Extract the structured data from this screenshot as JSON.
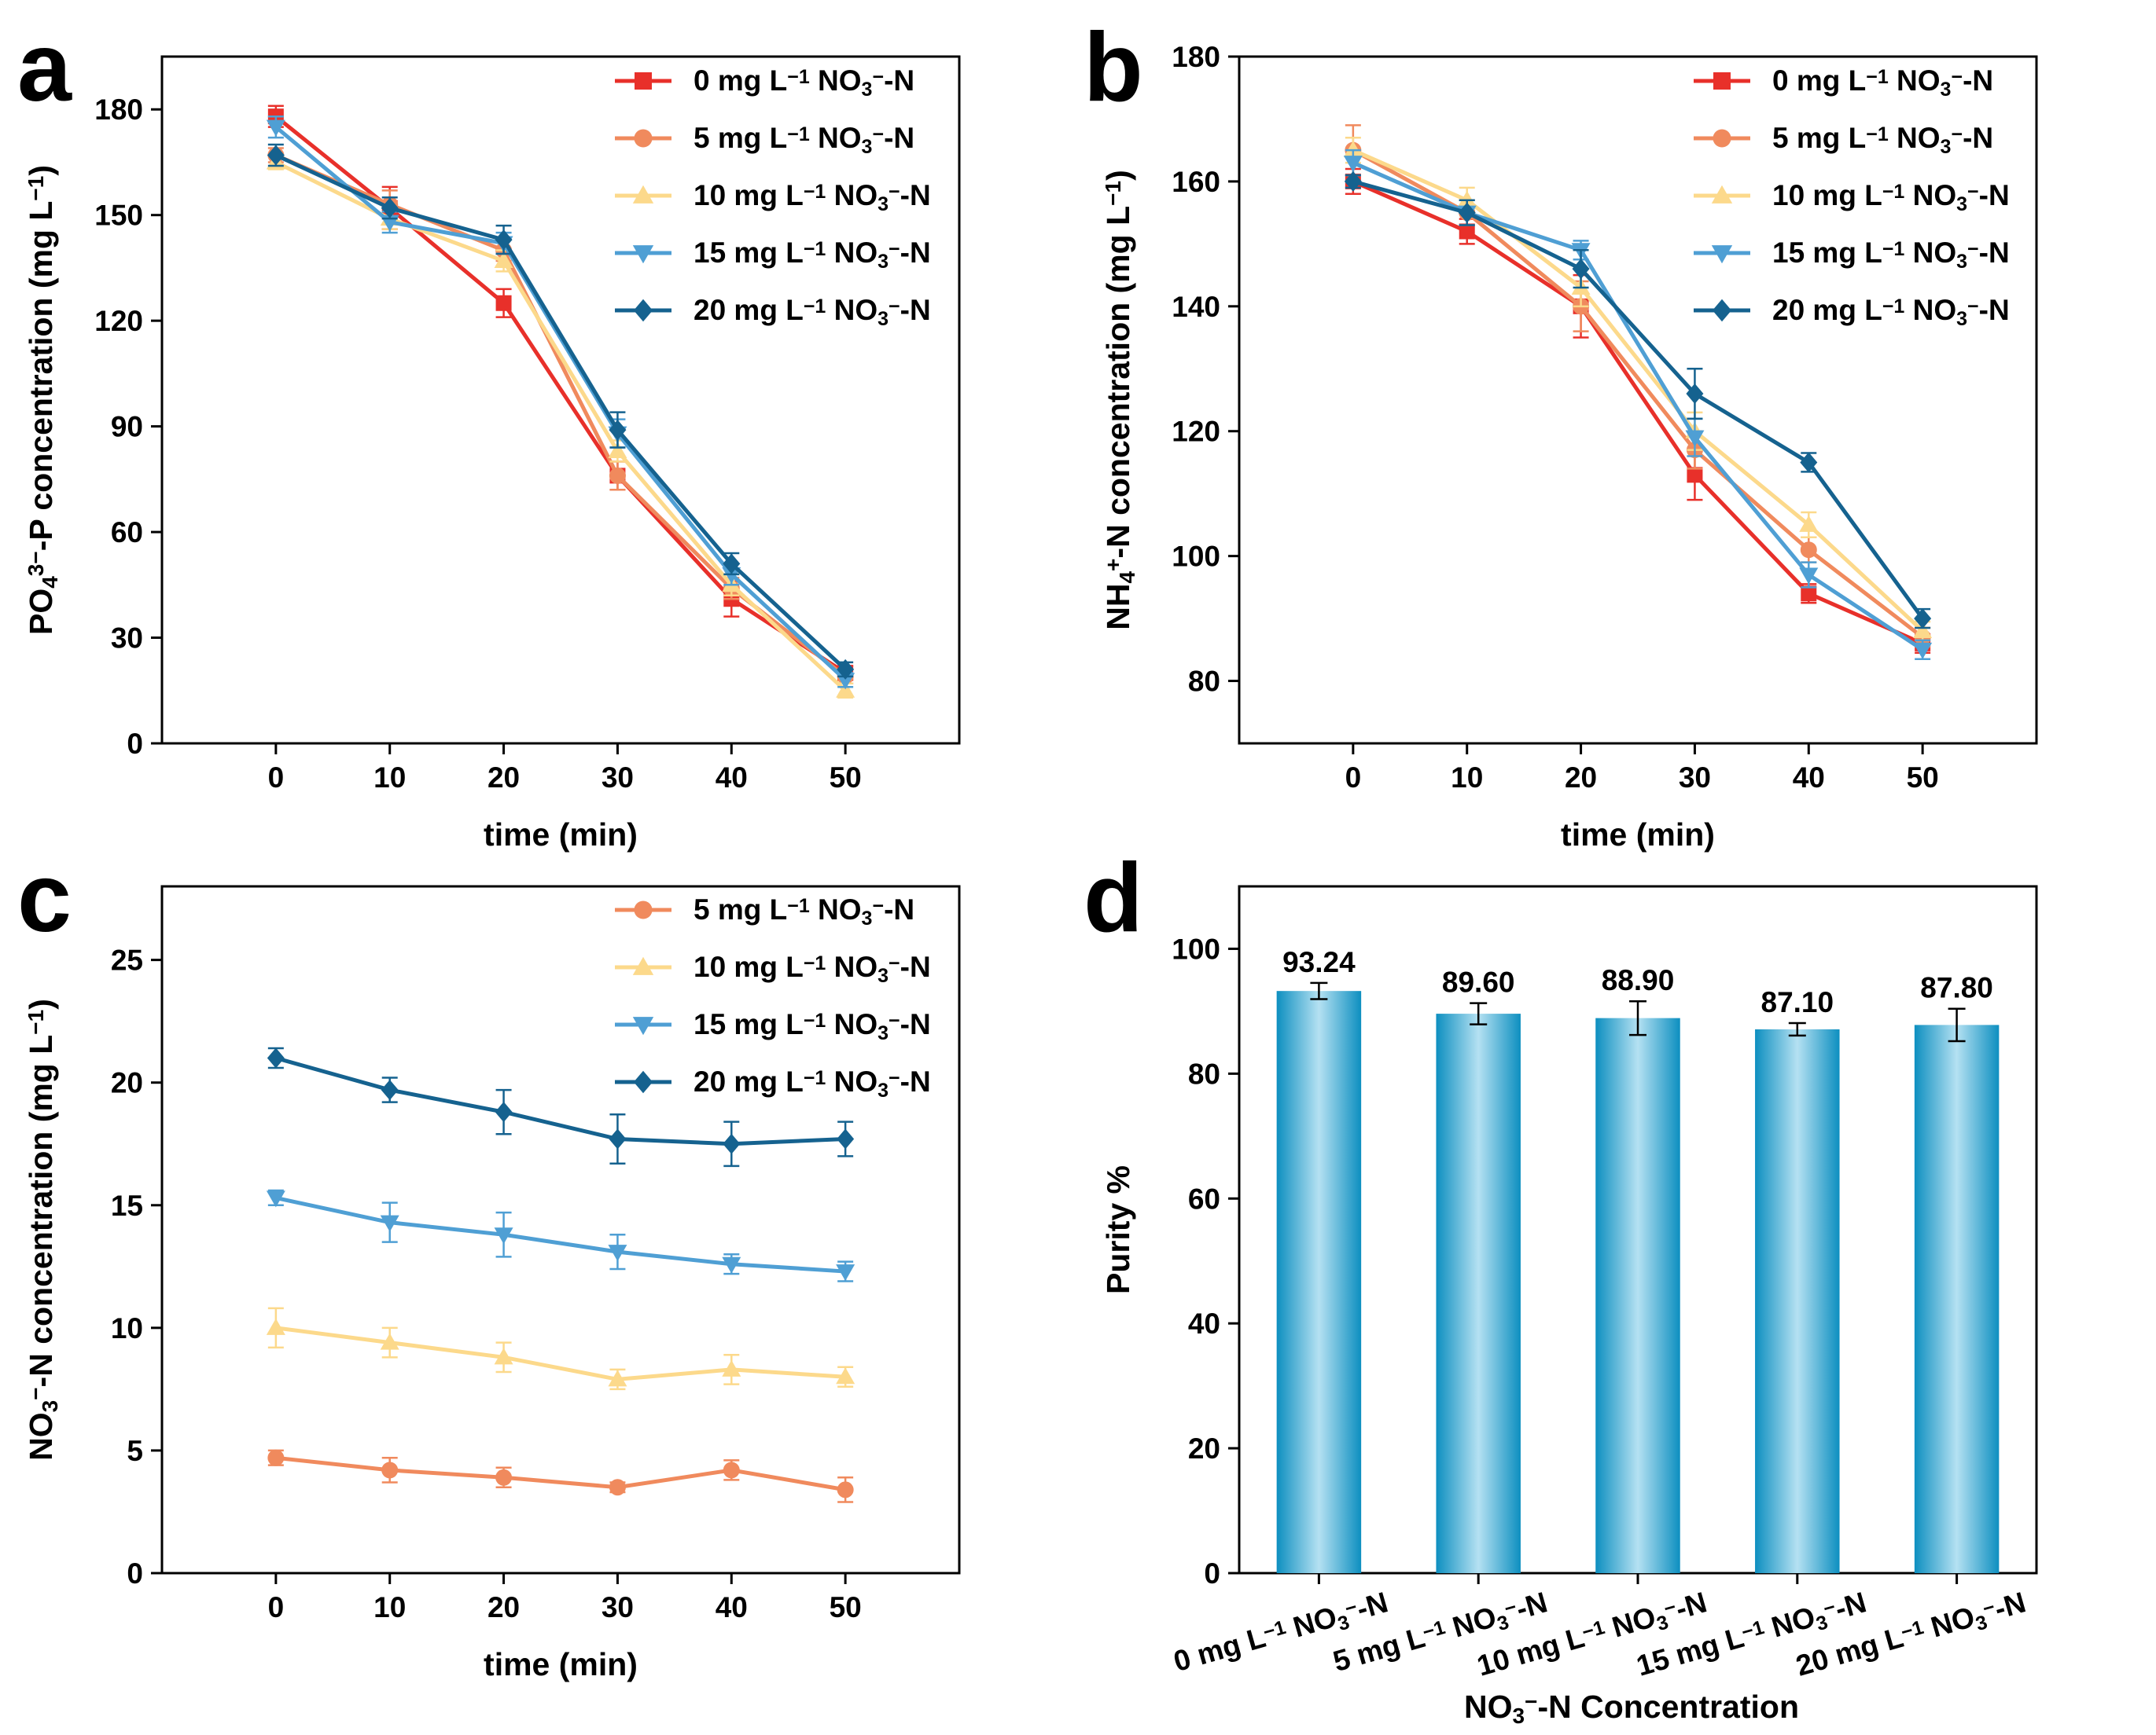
{
  "figure": {
    "panel_labels": [
      "a",
      "b",
      "c",
      "d"
    ]
  },
  "series_style": {
    "0 mg": {
      "color": "#e8302a",
      "marker": "square"
    },
    "5 mg": {
      "color": "#f08a5d",
      "marker": "circle"
    },
    "10 mg": {
      "color": "#fcd98b",
      "marker": "triangle-up"
    },
    "15 mg": {
      "color": "#4f9fd4",
      "marker": "triangle-down"
    },
    "20 mg": {
      "color": "#15628f",
      "marker": "diamond"
    },
    "bar_dark": "#0d8fc0",
    "bar_light": "#b5e1f2"
  },
  "chart_data": [
    {
      "id": "a",
      "type": "line",
      "xlabel": "time (min)",
      "ylabel": "PO₄³⁻-P concentration (mg L⁻¹)",
      "xlim": [
        -10,
        60
      ],
      "ylim": [
        0,
        195
      ],
      "xticks": [
        0,
        10,
        20,
        30,
        40,
        50
      ],
      "yticks": [
        0,
        30,
        60,
        90,
        120,
        150,
        180
      ],
      "x": [
        0,
        10,
        20,
        30,
        40,
        50
      ],
      "series": [
        {
          "name": "0 mg L⁻¹ NO₃⁻-N",
          "key": "0 mg",
          "values": [
            178,
            152,
            125,
            76,
            41,
            20
          ],
          "errors": [
            3,
            6,
            4,
            4,
            5,
            2
          ]
        },
        {
          "name": "5 mg L⁻¹ NO₃⁻-N",
          "key": "5 mg",
          "values": [
            167,
            153,
            140,
            76,
            44,
            19
          ],
          "errors": [
            2,
            4,
            3,
            4,
            3,
            2
          ]
        },
        {
          "name": "10 mg L⁻¹ NO₃⁻-N",
          "key": "10 mg",
          "values": [
            165,
            149,
            137,
            83,
            45,
            15
          ],
          "errors": [
            2,
            3,
            3,
            3,
            3,
            2
          ]
        },
        {
          "name": "15 mg L⁻¹ NO₃⁻-N",
          "key": "15 mg",
          "values": [
            175,
            148,
            142,
            88,
            48,
            18
          ],
          "errors": [
            3,
            3,
            3,
            4,
            3,
            2
          ]
        },
        {
          "name": "20 mg L⁻¹ NO₃⁻-N",
          "key": "20 mg",
          "values": [
            167,
            152,
            143,
            89,
            51,
            21
          ],
          "errors": [
            3,
            3,
            4,
            5,
            3,
            2
          ]
        }
      ]
    },
    {
      "id": "b",
      "type": "line",
      "xlabel": "time (min)",
      "ylabel": "NH₄⁺-N concentration (mg L⁻¹)",
      "xlim": [
        -10,
        60
      ],
      "ylim": [
        70,
        180
      ],
      "xticks": [
        0,
        10,
        20,
        30,
        40,
        50
      ],
      "yticks": [
        80,
        100,
        120,
        140,
        160,
        180
      ],
      "x": [
        0,
        10,
        20,
        30,
        40,
        50
      ],
      "series": [
        {
          "name": "0 mg L⁻¹ NO₃⁻-N",
          "key": "0 mg",
          "values": [
            160,
            152,
            140,
            113,
            94,
            86
          ],
          "errors": [
            2,
            2,
            5,
            4,
            1.5,
            1.5
          ]
        },
        {
          "name": "5 mg L⁻¹ NO₃⁻-N",
          "key": "5 mg",
          "values": [
            165,
            155,
            140,
            117,
            101,
            87
          ],
          "errors": [
            4,
            2,
            4,
            3,
            2,
            1.5
          ]
        },
        {
          "name": "10 mg L⁻¹ NO₃⁻-N",
          "key": "10 mg",
          "values": [
            165,
            157,
            143,
            120,
            105,
            88
          ],
          "errors": [
            2,
            2,
            3,
            3,
            2,
            1.5
          ]
        },
        {
          "name": "15 mg L⁻¹ NO₃⁻-N",
          "key": "15 mg",
          "values": [
            163,
            155,
            149,
            119,
            97,
            85
          ],
          "errors": [
            2,
            2,
            1.5,
            3,
            2,
            1.5
          ]
        },
        {
          "name": "20 mg L⁻¹ NO₃⁻-N",
          "key": "20 mg",
          "values": [
            160,
            155,
            146,
            126,
            115,
            90
          ],
          "errors": [
            1,
            2,
            3,
            4,
            1.5,
            1.5
          ]
        }
      ]
    },
    {
      "id": "c",
      "type": "line",
      "xlabel": "time (min)",
      "ylabel": "NO₃⁻-N concentration (mg L⁻¹)",
      "xlim": [
        -10,
        60
      ],
      "ylim": [
        0,
        28
      ],
      "xticks": [
        0,
        10,
        20,
        30,
        40,
        50
      ],
      "yticks": [
        0,
        5,
        10,
        15,
        20,
        25
      ],
      "x": [
        0,
        10,
        20,
        30,
        40,
        50
      ],
      "series": [
        {
          "name": "5 mg L⁻¹ NO₃⁻-N",
          "key": "5 mg",
          "values": [
            4.7,
            4.2,
            3.9,
            3.5,
            4.2,
            3.4
          ],
          "errors": [
            0.3,
            0.5,
            0.4,
            0.2,
            0.4,
            0.5
          ]
        },
        {
          "name": "10 mg L⁻¹ NO₃⁻-N",
          "key": "10 mg",
          "values": [
            10.0,
            9.4,
            8.8,
            7.9,
            8.3,
            8.0
          ],
          "errors": [
            0.8,
            0.6,
            0.6,
            0.4,
            0.6,
            0.4
          ]
        },
        {
          "name": "15 mg L⁻¹ NO₃⁻-N",
          "key": "15 mg",
          "values": [
            15.3,
            14.3,
            13.8,
            13.1,
            12.6,
            12.3
          ],
          "errors": [
            0.3,
            0.8,
            0.9,
            0.7,
            0.4,
            0.4
          ]
        },
        {
          "name": "20 mg L⁻¹ NO₃⁻-N",
          "key": "20 mg",
          "values": [
            21.0,
            19.7,
            18.8,
            17.7,
            17.5,
            17.7
          ],
          "errors": [
            0.4,
            0.5,
            0.9,
            1.0,
            0.9,
            0.7
          ]
        }
      ]
    },
    {
      "id": "d",
      "type": "bar",
      "xlabel": "NO₃⁻-N Concentration",
      "ylabel": "Purity %",
      "ylim": [
        0,
        110
      ],
      "yticks": [
        0,
        20,
        40,
        60,
        80,
        100
      ],
      "categories": [
        "0 mg L⁻¹ NO₃⁻-N",
        "5 mg L⁻¹ NO₃⁻-N",
        "10 mg L⁻¹ NO₃⁻-N",
        "15 mg L⁻¹ NO₃⁻-N",
        "20 mg L⁻¹ NO₃⁻-N"
      ],
      "values": [
        93.24,
        89.6,
        88.9,
        87.1,
        87.8
      ],
      "value_labels": [
        "93.24",
        "89.60",
        "88.90",
        "87.10",
        "87.80"
      ],
      "errors": [
        1.3,
        1.7,
        2.7,
        1.0,
        2.6
      ]
    }
  ]
}
